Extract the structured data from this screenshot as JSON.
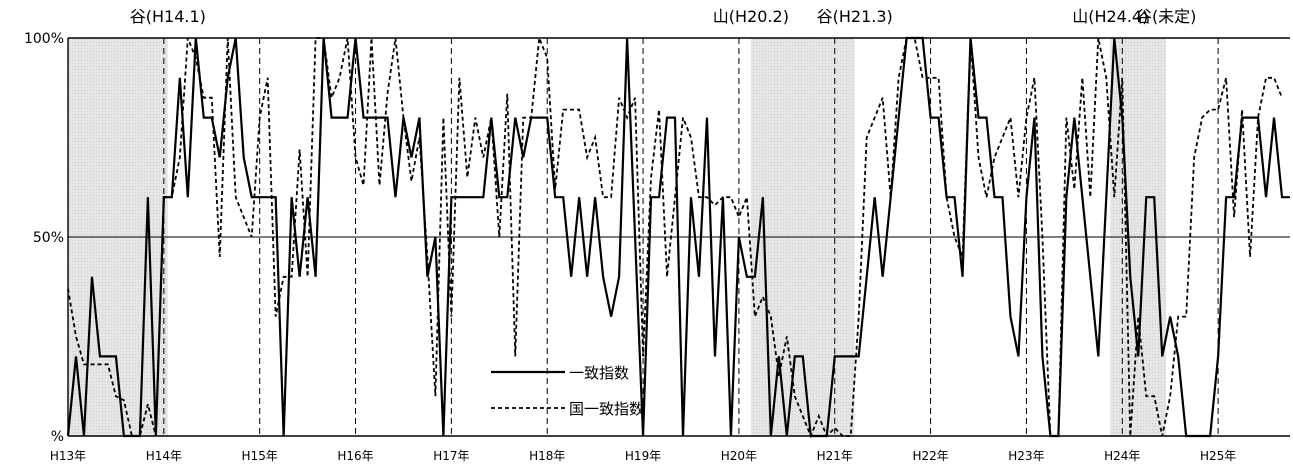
{
  "chart_data": {
    "type": "line",
    "title": "",
    "xlabel": "",
    "ylabel": "",
    "ylim": [
      0,
      100
    ],
    "y_ticks": [
      {
        "value": 0,
        "label": "%"
      },
      {
        "value": 50,
        "label": "50%"
      },
      {
        "value": 100,
        "label": "100%"
      }
    ],
    "x_range": [
      0,
      153
    ],
    "x_ticks": [
      {
        "pos": 0,
        "label": "H13年"
      },
      {
        "pos": 12,
        "label": "H14年"
      },
      {
        "pos": 24,
        "label": "H15年"
      },
      {
        "pos": 36,
        "label": "H16年"
      },
      {
        "pos": 48,
        "label": "H17年"
      },
      {
        "pos": 60,
        "label": "H18年"
      },
      {
        "pos": 72,
        "label": "H19年"
      },
      {
        "pos": 84,
        "label": "H20年"
      },
      {
        "pos": 96,
        "label": "H21年"
      },
      {
        "pos": 108,
        "label": "H22年"
      },
      {
        "pos": 120,
        "label": "H23年"
      },
      {
        "pos": 132,
        "label": "H24年"
      },
      {
        "pos": 144,
        "label": "H25年"
      }
    ],
    "recession_shading": [
      [
        0,
        12.5
      ],
      [
        85.5,
        98.5
      ],
      [
        130.5,
        137.5
      ]
    ],
    "turning_points": [
      {
        "x": 12.5,
        "label": "谷(H14.1)"
      },
      {
        "x": 85.5,
        "label": "山(H20.2)"
      },
      {
        "x": 98.5,
        "label": "谷(H21.3)"
      },
      {
        "x": 130.5,
        "label": "山(H24.4)"
      },
      {
        "x": 137.5,
        "label": "谷(未定)"
      }
    ],
    "grid": false,
    "legend_position": "bottom-center",
    "series": [
      {
        "name": "一致指数",
        "style": "solid",
        "color": "#000000",
        "values": [
          0,
          20,
          0,
          40,
          20,
          20,
          20,
          0,
          0,
          0,
          60,
          0,
          60,
          60,
          90,
          60,
          100,
          80,
          80,
          70,
          90,
          100,
          70,
          60,
          60,
          60,
          60,
          0,
          60,
          40,
          60,
          40,
          100,
          80,
          80,
          80,
          100,
          80,
          80,
          80,
          80,
          60,
          80,
          70,
          80,
          40,
          50,
          0,
          60,
          60,
          60,
          60,
          60,
          80,
          60,
          60,
          80,
          70,
          80,
          80,
          80,
          60,
          60,
          40,
          60,
          40,
          60,
          40,
          30,
          40,
          100,
          50,
          0,
          60,
          60,
          80,
          80,
          0,
          60,
          40,
          80,
          20,
          60,
          0,
          50,
          40,
          40,
          60,
          0,
          20,
          0,
          20,
          20,
          0,
          0,
          0,
          20,
          20,
          20,
          20,
          40,
          60,
          40,
          60,
          80,
          100,
          100,
          100,
          80,
          80,
          60,
          60,
          40,
          100,
          80,
          80,
          60,
          60,
          30,
          20,
          60,
          80,
          20,
          0,
          0,
          60,
          80,
          60,
          40,
          20,
          60,
          100,
          80,
          40,
          20,
          60,
          60,
          20,
          30,
          20,
          0,
          0,
          0,
          0,
          20,
          60,
          60,
          80,
          80,
          80,
          60,
          80,
          60,
          60
        ]
      },
      {
        "name": "国一致指数",
        "style": "dashed",
        "color": "#000000",
        "values": [
          37,
          25,
          18,
          18,
          18,
          18,
          10,
          9,
          0,
          0,
          8,
          0,
          60,
          60,
          70,
          100,
          95,
          85,
          85,
          45,
          100,
          60,
          55,
          50,
          80,
          90,
          30,
          40,
          40,
          72,
          40,
          100,
          100,
          85,
          90,
          100,
          70,
          63,
          100,
          63,
          86,
          100,
          80,
          64,
          75,
          45,
          10,
          80,
          30,
          90,
          65,
          80,
          70,
          80,
          50,
          86,
          20,
          80,
          80,
          100,
          95,
          62,
          82,
          82,
          82,
          70,
          75,
          60,
          60,
          85,
          80,
          85,
          20,
          65,
          82,
          40,
          60,
          80,
          75,
          60,
          60,
          58,
          60,
          60,
          55,
          60,
          30,
          35,
          30,
          15,
          25,
          10,
          5,
          0,
          5,
          0,
          2,
          0,
          0,
          30,
          75,
          80,
          85,
          60,
          90,
          100,
          100,
          90,
          90,
          90,
          60,
          50,
          45,
          100,
          70,
          60,
          70,
          75,
          80,
          60,
          80,
          90,
          50,
          0,
          0,
          80,
          62,
          90,
          60,
          100,
          90,
          60,
          90,
          0,
          30,
          10,
          10,
          0,
          10,
          30,
          30,
          70,
          80,
          82,
          82,
          90,
          55,
          82,
          45,
          80,
          90,
          90,
          85
        ]
      }
    ]
  }
}
